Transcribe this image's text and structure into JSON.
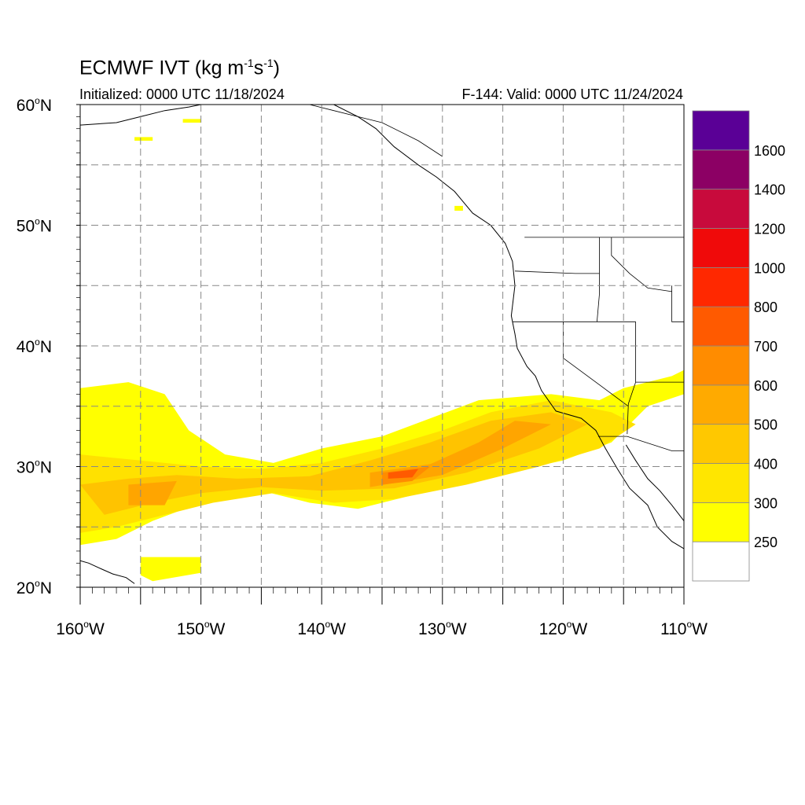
{
  "title": {
    "main": "ECMWF IVT (kg m",
    "exp1": "-1",
    "mid": "s",
    "exp2": "-1",
    "close": ")"
  },
  "subtitle_left": "Initialized: 0000 UTC 11/18/2024",
  "subtitle_right": "F-144: Valid: 0000 UTC 11/24/2024",
  "map": {
    "projection": "cylindrical equidistant",
    "lon_range": [
      -160,
      -110
    ],
    "lat_range": [
      20,
      60
    ],
    "gridlines": "dashed every 5 degrees",
    "lat_ticks": [
      {
        "value": 60,
        "deg": "60",
        "hem": "N"
      },
      {
        "value": 50,
        "deg": "50",
        "hem": "N"
      },
      {
        "value": 40,
        "deg": "40",
        "hem": "N"
      },
      {
        "value": 30,
        "deg": "30",
        "hem": "N"
      },
      {
        "value": 20,
        "deg": "20",
        "hem": "N"
      }
    ],
    "lon_ticks": [
      {
        "value": -160,
        "deg": "160",
        "hem": "W"
      },
      {
        "value": -150,
        "deg": "150",
        "hem": "W"
      },
      {
        "value": -140,
        "deg": "140",
        "hem": "W"
      },
      {
        "value": -130,
        "deg": "130",
        "hem": "W"
      },
      {
        "value": -120,
        "deg": "120",
        "hem": "W"
      },
      {
        "value": -110,
        "deg": "110",
        "hem": "W"
      }
    ]
  },
  "colorbar": {
    "labels": [
      "250",
      "300",
      "400",
      "500",
      "600",
      "700",
      "800",
      "1000",
      "1200",
      "1400",
      "1600"
    ],
    "colors": [
      "#ffffff",
      "#ffff00",
      "#ffe600",
      "#ffc800",
      "#ffaa00",
      "#ff8c00",
      "#ff5a00",
      "#ff2800",
      "#f00a0a",
      "#c80a3c",
      "#8c0064",
      "#5a0096"
    ]
  },
  "ivt_features": [
    {
      "name": "main-river-yellow",
      "level": "250-300",
      "color": "#ffff00",
      "lonlat": [
        [
          -160,
          36.5
        ],
        [
          -156,
          37
        ],
        [
          -153,
          36
        ],
        [
          -151,
          33
        ],
        [
          -148,
          31
        ],
        [
          -144,
          30.3
        ],
        [
          -140,
          31.5
        ],
        [
          -135,
          32.5
        ],
        [
          -131,
          34
        ],
        [
          -127,
          35.5
        ],
        [
          -121,
          36
        ],
        [
          -117,
          35.5
        ],
        [
          -115,
          36.5
        ],
        [
          -111,
          37.5
        ],
        [
          -110,
          38
        ],
        [
          -110,
          36
        ],
        [
          -113,
          35
        ],
        [
          -116,
          32
        ],
        [
          -120,
          30.5
        ],
        [
          -127,
          29
        ],
        [
          -133,
          27.5
        ],
        [
          -137,
          26.5
        ],
        [
          -141,
          27
        ],
        [
          -145,
          28
        ],
        [
          -150,
          27
        ],
        [
          -154,
          25.5
        ],
        [
          -157,
          24
        ],
        [
          -160,
          23.5
        ]
      ]
    },
    {
      "name": "northwest-loop-yellow",
      "level": "250-300",
      "color": "#ffff00",
      "lonlat": [
        [
          -160,
          34.5
        ],
        [
          -157,
          35
        ],
        [
          -155.5,
          33
        ],
        [
          -156,
          31
        ],
        [
          -158,
          30
        ],
        [
          -160,
          29.5
        ]
      ]
    },
    {
      "name": "main-river-300",
      "level": "300-400",
      "color": "#ffe100",
      "lonlat": [
        [
          -160,
          31
        ],
        [
          -155,
          30.5
        ],
        [
          -150,
          30
        ],
        [
          -145,
          29.8
        ],
        [
          -140,
          30.3
        ],
        [
          -135,
          31.5
        ],
        [
          -130,
          33
        ],
        [
          -126,
          34.5
        ],
        [
          -121,
          35.5
        ],
        [
          -116,
          34.5
        ],
        [
          -114,
          33.5
        ],
        [
          -117,
          31.5
        ],
        [
          -122,
          30
        ],
        [
          -128,
          28.5
        ],
        [
          -134,
          27.3
        ],
        [
          -139,
          27
        ],
        [
          -144,
          27.8
        ],
        [
          -149,
          27
        ],
        [
          -153,
          26
        ],
        [
          -157,
          25
        ],
        [
          -160,
          24.5
        ]
      ]
    },
    {
      "name": "main-river-400",
      "level": "400-500",
      "color": "#ffc300",
      "lonlat": [
        [
          -160,
          28.5
        ],
        [
          -156,
          29
        ],
        [
          -152,
          29.3
        ],
        [
          -147,
          29
        ],
        [
          -141,
          29.2
        ],
        [
          -136,
          30.5
        ],
        [
          -131,
          32
        ],
        [
          -126,
          33.8
        ],
        [
          -121,
          34.5
        ],
        [
          -118,
          33.5
        ],
        [
          -122,
          31.5
        ],
        [
          -128,
          29.5
        ],
        [
          -134,
          28.2
        ],
        [
          -140,
          28
        ],
        [
          -145,
          28.3
        ],
        [
          -150,
          27.8
        ],
        [
          -154,
          27
        ],
        [
          -158,
          26
        ]
      ]
    },
    {
      "name": "core-500",
      "level": "500-600",
      "color": "#ffa500",
      "lonlat": [
        [
          -156,
          28.5
        ],
        [
          -152,
          28.8
        ],
        [
          -153,
          26.8
        ],
        [
          -156,
          26.8
        ]
      ]
    },
    {
      "name": "core-500-east",
      "level": "500-600",
      "color": "#ffa500",
      "lonlat": [
        [
          -136,
          29.5
        ],
        [
          -131,
          30.2
        ],
        [
          -127,
          32
        ],
        [
          -124,
          33.8
        ],
        [
          -121,
          33.5
        ],
        [
          -125,
          31.5
        ],
        [
          -130,
          29.3
        ],
        [
          -136,
          28.3
        ]
      ]
    },
    {
      "name": "core-600",
      "level": "600-700",
      "color": "#ff8c00",
      "lonlat": [
        [
          -135,
          29.5
        ],
        [
          -131,
          30
        ],
        [
          -132.5,
          28.8
        ],
        [
          -135,
          28.5
        ]
      ]
    },
    {
      "name": "core-700",
      "level": "700-800",
      "color": "#ff5a00",
      "lonlat": [
        [
          -134.5,
          29.5
        ],
        [
          -132,
          29.8
        ],
        [
          -132.5,
          29.1
        ],
        [
          -134.5,
          29
        ]
      ]
    },
    {
      "name": "southern-patch",
      "level": "250-300",
      "color": "#ffff00",
      "lonlat": [
        [
          -155,
          22.5
        ],
        [
          -150,
          22.5
        ],
        [
          -150,
          21.2
        ],
        [
          -154,
          20.5
        ],
        [
          -155,
          21
        ]
      ]
    },
    {
      "name": "alaska-patch",
      "level": "250-300",
      "color": "#ffff00",
      "lonlat": [
        [
          -155.5,
          57.3
        ],
        [
          -154,
          57.3
        ],
        [
          -154,
          57
        ],
        [
          -155.5,
          57
        ]
      ]
    },
    {
      "name": "alaska-patch-2",
      "level": "250-300",
      "color": "#ffff00",
      "lonlat": [
        [
          -151.5,
          58.8
        ],
        [
          -150,
          58.8
        ],
        [
          -150,
          58.5
        ],
        [
          -151.5,
          58.5
        ]
      ]
    },
    {
      "name": "bc-patch",
      "level": "250-300",
      "color": "#ffff00",
      "lonlat": [
        [
          -129,
          51.6
        ],
        [
          -128.3,
          51.6
        ],
        [
          -128.3,
          51.2
        ],
        [
          -129,
          51.2
        ]
      ]
    }
  ],
  "coastlines": [
    {
      "name": "alaska-coast",
      "lonlat": [
        [
          -160,
          58.3
        ],
        [
          -157,
          58.5
        ],
        [
          -155,
          59
        ],
        [
          -153,
          59.5
        ],
        [
          -151,
          59.8
        ],
        [
          -150,
          60
        ]
      ]
    },
    {
      "name": "pacific-northwest-coast",
      "lonlat": [
        [
          -139,
          60
        ],
        [
          -137,
          59
        ],
        [
          -135.5,
          58
        ],
        [
          -134,
          56.5
        ],
        [
          -132,
          55
        ],
        [
          -130.5,
          54
        ],
        [
          -129,
          52.8
        ],
        [
          -127.5,
          51
        ],
        [
          -126,
          50
        ],
        [
          -124.8,
          48.5
        ],
        [
          -124.2,
          47
        ],
        [
          -124,
          45
        ],
        [
          -124.3,
          42.5
        ],
        [
          -124,
          41
        ],
        [
          -123.8,
          39.8
        ],
        [
          -123,
          38.3
        ],
        [
          -122.3,
          37.5
        ],
        [
          -121.8,
          36.3
        ],
        [
          -120.6,
          34.6
        ],
        [
          -118.5,
          34
        ],
        [
          -117.3,
          33
        ],
        [
          -116.5,
          31.5
        ],
        [
          -115.5,
          29.8
        ],
        [
          -114.5,
          28.2
        ],
        [
          -113,
          26.8
        ],
        [
          -112.2,
          25
        ],
        [
          -111,
          23.8
        ],
        [
          -110,
          23.2
        ]
      ]
    },
    {
      "name": "gulf-of-california-coast",
      "lonlat": [
        [
          -114.8,
          31.8
        ],
        [
          -114,
          30.5
        ],
        [
          -113,
          29
        ],
        [
          -112,
          28
        ],
        [
          -111,
          26.8
        ],
        [
          -110,
          25.5
        ]
      ]
    },
    {
      "name": "hawaii-coast",
      "lonlat": [
        [
          -160,
          22.2
        ],
        [
          -159.3,
          22
        ],
        [
          -158.2,
          21.5
        ],
        [
          -157.3,
          21.1
        ],
        [
          -156.2,
          20.8
        ],
        [
          -155.5,
          20.3
        ]
      ]
    }
  ],
  "borders": [
    {
      "name": "canada-us-border-west",
      "lonlat": [
        [
          -123.2,
          49
        ],
        [
          -110,
          49
        ]
      ]
    },
    {
      "name": "alaska-canada-border",
      "lonlat": [
        [
          -141,
          60
        ],
        [
          -139,
          59.5
        ],
        [
          -137,
          59
        ],
        [
          -135,
          58.5
        ],
        [
          -132,
          57
        ],
        [
          -130,
          55.7
        ]
      ]
    },
    {
      "name": "washington-oregon-border",
      "lonlat": [
        [
          -124,
          46.2
        ],
        [
          -119,
          46
        ],
        [
          -117,
          46
        ]
      ]
    },
    {
      "name": "idaho-west-border",
      "lonlat": [
        [
          -117,
          49
        ],
        [
          -117,
          44.3
        ],
        [
          -117.2,
          42
        ]
      ]
    },
    {
      "name": "oregon-california-border",
      "lonlat": [
        [
          -124.2,
          42
        ],
        [
          -114,
          42
        ]
      ]
    },
    {
      "name": "california-nevada-border",
      "lonlat": [
        [
          -120,
          42
        ],
        [
          -120,
          39
        ],
        [
          -114.6,
          35
        ]
      ]
    },
    {
      "name": "nevada-arizona-border",
      "lonlat": [
        [
          -114,
          42
        ],
        [
          -114,
          37
        ],
        [
          -114.6,
          35.2
        ],
        [
          -114.7,
          32.7
        ]
      ]
    },
    {
      "name": "us-mexico-border",
      "lonlat": [
        [
          -117.1,
          32.5
        ],
        [
          -114.7,
          32.5
        ],
        [
          -111,
          31.3
        ],
        [
          -110,
          31.3
        ]
      ]
    },
    {
      "name": "montana-idaho-border",
      "lonlat": [
        [
          -116,
          49
        ],
        [
          -116,
          47.5
        ],
        [
          -114.5,
          46
        ],
        [
          -113,
          44.8
        ],
        [
          -111,
          44.5
        ]
      ]
    },
    {
      "name": "utah-east-border",
      "lonlat": [
        [
          -111,
          45
        ],
        [
          -111,
          42
        ],
        [
          -110,
          42
        ]
      ]
    },
    {
      "name": "utah-arizona-border",
      "lonlat": [
        [
          -114,
          37
        ],
        [
          -110,
          37
        ]
      ]
    }
  ]
}
